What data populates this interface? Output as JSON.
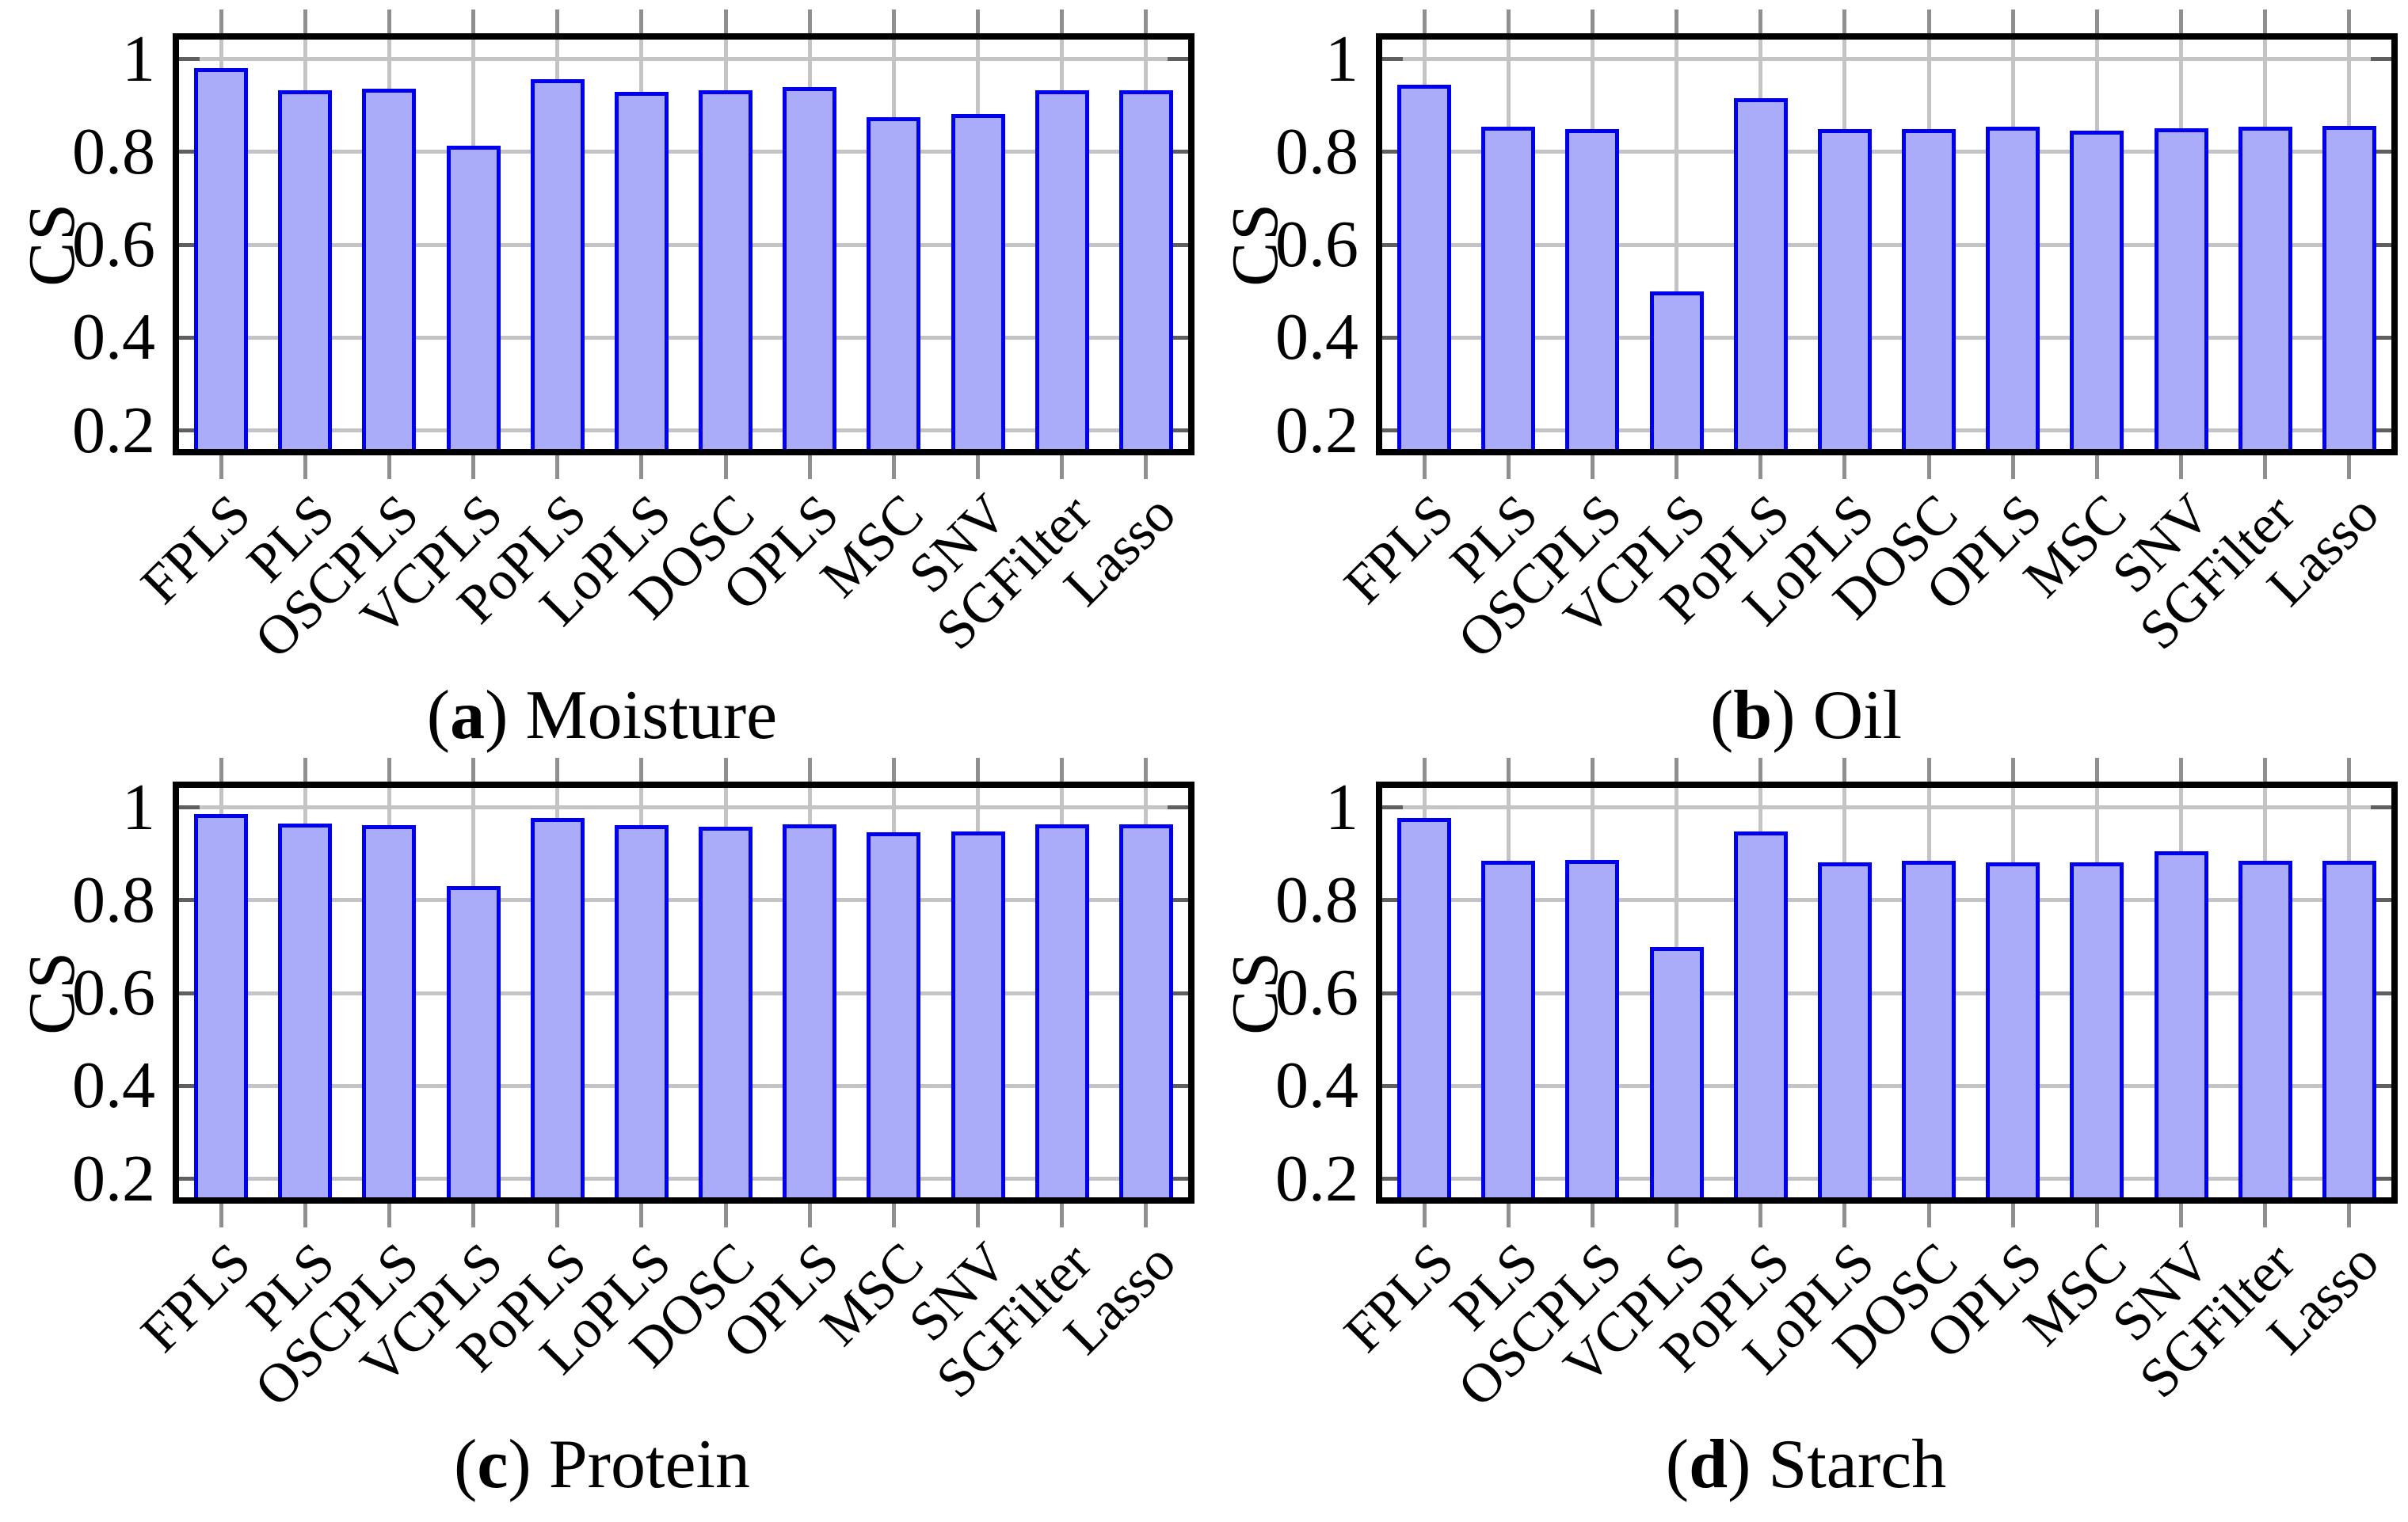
{
  "figure": {
    "background": "#ffffff",
    "description_visible_panels": 4
  },
  "colors": {
    "bar_fill": "#aaabf9",
    "bar_border": "#0000ee",
    "grid": "#c4c4c4",
    "frame": "#000000",
    "x_tick": "#8f8f8f",
    "y_tick": "#5f5f5f",
    "text": "#000000"
  },
  "chart_data": [
    {
      "type": "bar",
      "caption_open": "(",
      "caption_letter": "a",
      "caption_close": ")",
      "caption_title": "Moisture",
      "ylabel": "CS",
      "categories": [
        "FPLS",
        "PLS",
        "OSCPLS",
        "VCPLS",
        "PoPLS",
        "LoPLS",
        "DOSC",
        "OPLS",
        "MSC",
        "SNV",
        "SGFilter",
        "Lasso"
      ],
      "values": [
        0.981,
        0.932,
        0.936,
        0.813,
        0.957,
        0.929,
        0.933,
        0.94,
        0.874,
        0.882,
        0.933,
        0.933
      ],
      "yticks": [
        0.2,
        0.4,
        0.6,
        0.8,
        1
      ],
      "ytick_labels": [
        "0.2",
        "0.4",
        "0.6",
        "0.8",
        "1"
      ],
      "ylim": [
        0.16,
        1.042
      ],
      "grid": true,
      "legend": null
    },
    {
      "type": "bar",
      "caption_open": "(",
      "caption_letter": "b",
      "caption_close": ")",
      "caption_title": "Oil",
      "ylabel": "CS",
      "categories": [
        "FPLS",
        "PLS",
        "OSCPLS",
        "VCPLS",
        "PoPLS",
        "LoPLS",
        "DOSC",
        "OPLS",
        "MSC",
        "SNV",
        "SGFilter",
        "Lasso"
      ],
      "values": [
        0.944,
        0.855,
        0.849,
        0.499,
        0.916,
        0.849,
        0.85,
        0.855,
        0.845,
        0.851,
        0.855,
        0.856
      ],
      "yticks": [
        0.2,
        0.4,
        0.6,
        0.8,
        1
      ],
      "ytick_labels": [
        "0.2",
        "0.4",
        "0.6",
        "0.8",
        "1"
      ],
      "ylim": [
        0.16,
        1.042
      ],
      "grid": true,
      "legend": null
    },
    {
      "type": "bar",
      "caption_open": "(",
      "caption_letter": "c",
      "caption_close": ")",
      "caption_title": "Protein",
      "ylabel": "CS",
      "categories": [
        "FPLS",
        "PLS",
        "OSCPLS",
        "VCPLS",
        "PoPLS",
        "LoPLS",
        "DOSC",
        "OPLS",
        "MSC",
        "SNV",
        "SGFilter",
        "Lasso"
      ],
      "values": [
        0.985,
        0.965,
        0.961,
        0.831,
        0.978,
        0.962,
        0.958,
        0.963,
        0.947,
        0.948,
        0.963,
        0.963
      ],
      "yticks": [
        0.2,
        0.4,
        0.6,
        0.8,
        1
      ],
      "ytick_labels": [
        "0.2",
        "0.4",
        "0.6",
        "0.8",
        "1"
      ],
      "ylim": [
        0.16,
        1.042
      ],
      "grid": true,
      "legend": null
    },
    {
      "type": "bar",
      "caption_open": "(",
      "caption_letter": "d",
      "caption_close": ")",
      "caption_title": "Starch",
      "ylabel": "CS",
      "categories": [
        "FPLS",
        "PLS",
        "OSCPLS",
        "VCPLS",
        "PoPLS",
        "LoPLS",
        "DOSC",
        "OPLS",
        "MSC",
        "SNV",
        "SGFilter",
        "Lasso"
      ],
      "values": [
        0.978,
        0.885,
        0.886,
        0.699,
        0.949,
        0.882,
        0.885,
        0.882,
        0.882,
        0.906,
        0.885,
        0.885
      ],
      "yticks": [
        0.2,
        0.4,
        0.6,
        0.8,
        1
      ],
      "ytick_labels": [
        "0.2",
        "0.4",
        "0.6",
        "0.8",
        "1"
      ],
      "ylim": [
        0.16,
        1.042
      ],
      "grid": true,
      "legend": null
    }
  ]
}
